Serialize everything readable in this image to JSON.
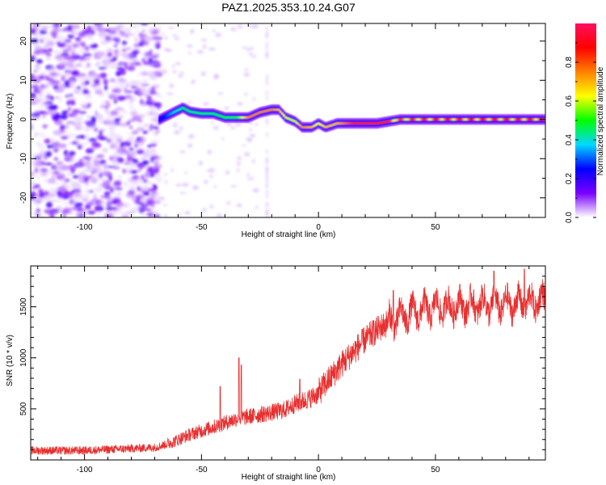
{
  "title": "PAZ1.2025.353.10.24.G07",
  "chart_data": [
    {
      "type": "heatmap",
      "xlabel": "Height of straight line (km)",
      "ylabel": "Frequency (Hz)",
      "xlim": [
        -123,
        97
      ],
      "ylim": [
        -25,
        24.5
      ],
      "xticks": [
        -100,
        -50,
        0,
        50
      ],
      "xtick_labels": [
        "-100",
        "-50",
        "0",
        "50"
      ],
      "yticks": [
        -20,
        -10,
        0,
        10,
        20
      ],
      "ytick_labels": [
        "-20",
        "-10",
        "0",
        "10",
        "20"
      ],
      "colorbar": {
        "label": "Normalized spectral amplitude",
        "range": [
          0,
          1
        ],
        "ticks": [
          0.0,
          0.2,
          0.4,
          0.6,
          0.8
        ],
        "tick_labels": [
          "0.0",
          "0.2",
          "0.4",
          "0.6",
          "0.8"
        ],
        "colormap": [
          "#ffffff",
          "#7a00ff",
          "#0000ff",
          "#00d8ff",
          "#00ff00",
          "#ffff00",
          "#ff8000",
          "#ff0000",
          "#ff1060"
        ]
      },
      "ridge": {
        "x": [
          -68,
          -63,
          -58,
          -55,
          -50,
          -45,
          -40,
          -35,
          -30,
          -25,
          -20,
          -17,
          -14,
          -10,
          -7,
          -3,
          0,
          3,
          8,
          15,
          25,
          35,
          50,
          70,
          97
        ],
        "y": [
          0,
          1.5,
          3,
          2,
          1.5,
          1.5,
          0.5,
          0.5,
          0.5,
          1.8,
          2.5,
          2.5,
          0.5,
          -0.5,
          -2,
          -2,
          -1,
          -2,
          -1,
          -1,
          -1,
          0,
          0,
          0,
          0
        ],
        "amplitude": [
          0.2,
          0.35,
          0.45,
          0.45,
          0.45,
          0.45,
          0.5,
          0.5,
          0.75,
          0.75,
          0.75,
          0.7,
          0.6,
          0.6,
          0.75,
          0.7,
          0.6,
          0.7,
          0.7,
          0.85,
          0.85,
          0.85,
          0.9,
          0.9,
          0.9
        ]
      },
      "noise_region_x": [
        -123,
        -68
      ],
      "noise_amplitude": [
        0.02,
        0.18
      ]
    },
    {
      "type": "line",
      "xlabel": "Height of straight line (km)",
      "ylabel": "SNR (10 * v/v)",
      "xlim": [
        -123,
        97
      ],
      "ylim": [
        0,
        1900
      ],
      "xticks": [
        -100,
        -50,
        0,
        50
      ],
      "xtick_labels": [
        "-100",
        "-50",
        "0",
        "50"
      ],
      "yticks": [
        500,
        1000,
        1500
      ],
      "ytick_labels": [
        "500",
        "1000",
        "1500"
      ],
      "series": [
        {
          "name": "SNR",
          "color": "#e83030",
          "trend_x": [
            -123,
            -100,
            -80,
            -70,
            -62,
            -55,
            -45,
            -35,
            -25,
            -15,
            -10,
            -5,
            0,
            5,
            10,
            15,
            20,
            25,
            30,
            35,
            40,
            45,
            50,
            55,
            60,
            70,
            80,
            90,
            97
          ],
          "trend_y": [
            80,
            80,
            100,
            110,
            160,
            230,
            300,
            380,
            420,
            460,
            520,
            560,
            620,
            760,
            900,
            1020,
            1140,
            1230,
            1310,
            1360,
            1400,
            1430,
            1450,
            1460,
            1470,
            1480,
            1480,
            1500,
            1530
          ],
          "spread": 170,
          "peaks": [
            {
              "x": -34,
              "y": 1000
            },
            {
              "x": -33,
              "y": 930
            },
            {
              "x": -42,
              "y": 720
            },
            {
              "x": -8,
              "y": 790
            },
            {
              "x": 32,
              "y": 1660
            },
            {
              "x": 75,
              "y": 1850
            },
            {
              "x": 88,
              "y": 1870
            }
          ]
        }
      ]
    }
  ]
}
